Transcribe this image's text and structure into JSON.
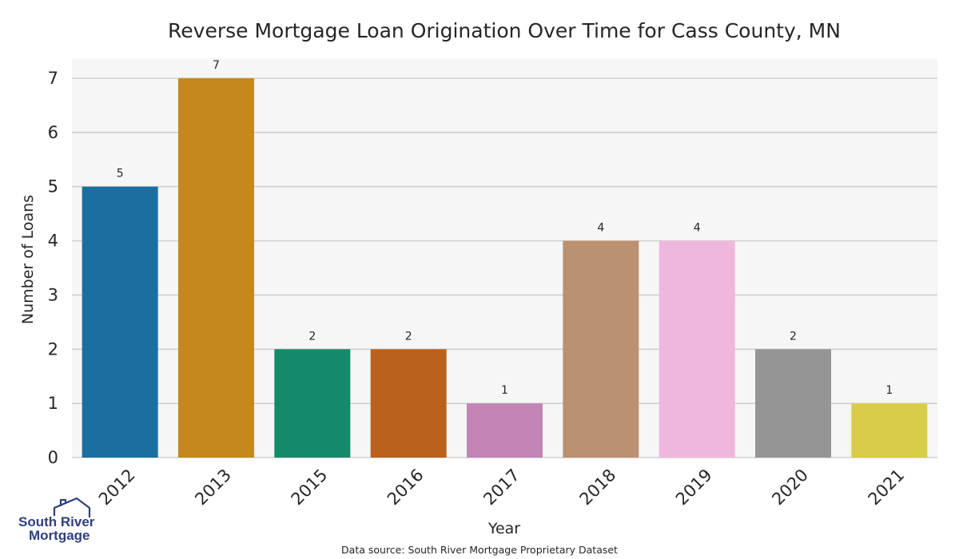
{
  "chart_data": {
    "type": "bar",
    "title": "Reverse Mortgage Loan Origination Over Time for Cass County, MN",
    "xlabel": "Year",
    "ylabel": "Number of Loans",
    "categories": [
      "2012",
      "2013",
      "2015",
      "2016",
      "2017",
      "2018",
      "2019",
      "2020",
      "2021"
    ],
    "values": [
      5,
      7,
      2,
      2,
      1,
      4,
      4,
      2,
      1
    ],
    "data_labels": [
      "5",
      "7",
      "2",
      "2",
      "1",
      "4",
      "4",
      "2",
      "1"
    ],
    "colors": [
      "#1a6fa0",
      "#c5881f",
      "#158a6a",
      "#ba621d",
      "#c384b6",
      "#bc916f",
      "#f0b7de",
      "#959595",
      "#d8cd48"
    ],
    "ylim": [
      0,
      7
    ],
    "yticks": [
      "0",
      "1",
      "2",
      "3",
      "4",
      "5",
      "6",
      "7"
    ],
    "grid": true,
    "plot_background": "#f6f6f6",
    "grid_color": "#d0d0d0"
  },
  "source_note": "Data source: South River Mortgage Proprietary Dataset",
  "logo": {
    "line1": "South River",
    "line2": "Mortgage",
    "color": "#2e3f80"
  }
}
